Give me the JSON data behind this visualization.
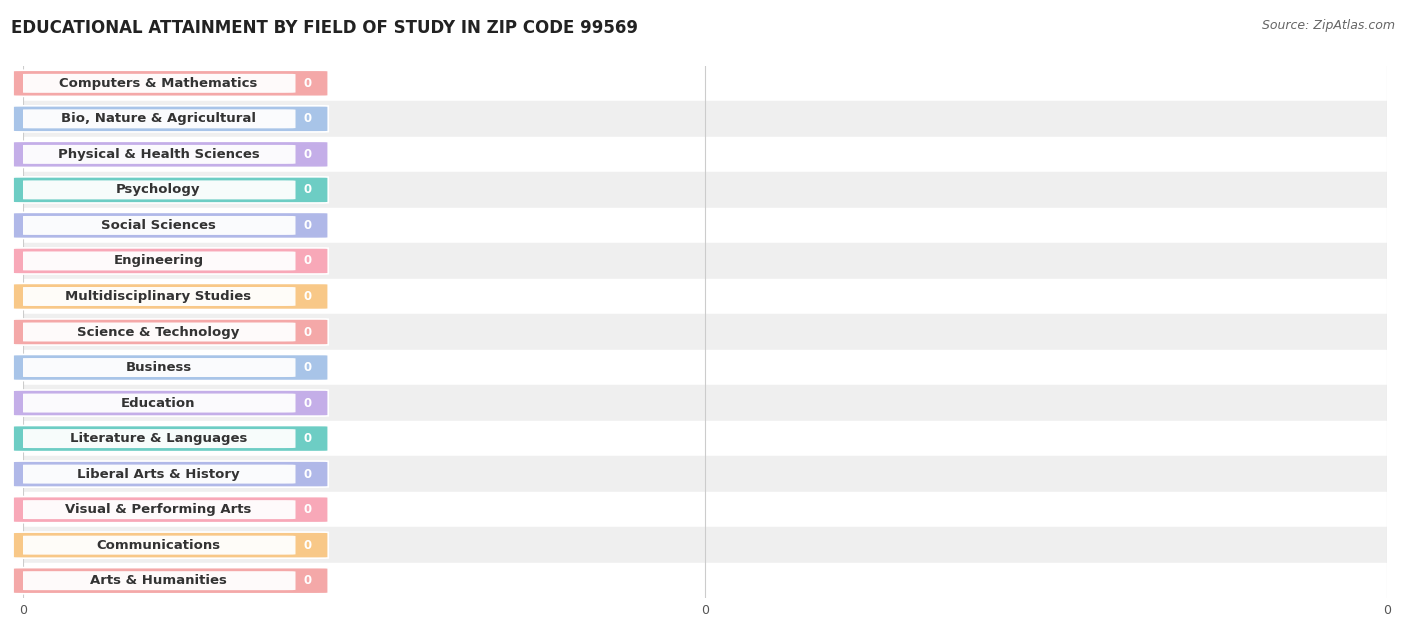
{
  "title": "EDUCATIONAL ATTAINMENT BY FIELD OF STUDY IN ZIP CODE 99569",
  "source": "Source: ZipAtlas.com",
  "categories": [
    "Computers & Mathematics",
    "Bio, Nature & Agricultural",
    "Physical & Health Sciences",
    "Psychology",
    "Social Sciences",
    "Engineering",
    "Multidisciplinary Studies",
    "Science & Technology",
    "Business",
    "Education",
    "Literature & Languages",
    "Liberal Arts & History",
    "Visual & Performing Arts",
    "Communications",
    "Arts & Humanities"
  ],
  "values": [
    0,
    0,
    0,
    0,
    0,
    0,
    0,
    0,
    0,
    0,
    0,
    0,
    0,
    0,
    0
  ],
  "bar_colors": [
    "#f4a8a8",
    "#a8c4e8",
    "#c4aee8",
    "#6dcdc4",
    "#b0b8e8",
    "#f8a8b8",
    "#f8c888",
    "#f4a8a8",
    "#a8c4e8",
    "#c4aee8",
    "#6dcdc4",
    "#b0b8e8",
    "#f8a8b8",
    "#f8c888",
    "#f4a8a8"
  ],
  "row_colors": [
    "#ffffff",
    "#efefef"
  ],
  "title_fontsize": 12,
  "source_fontsize": 9,
  "label_fontsize": 9.5,
  "value_fontsize": 8.5,
  "background_color": "#ffffff",
  "grid_color": "#cccccc"
}
